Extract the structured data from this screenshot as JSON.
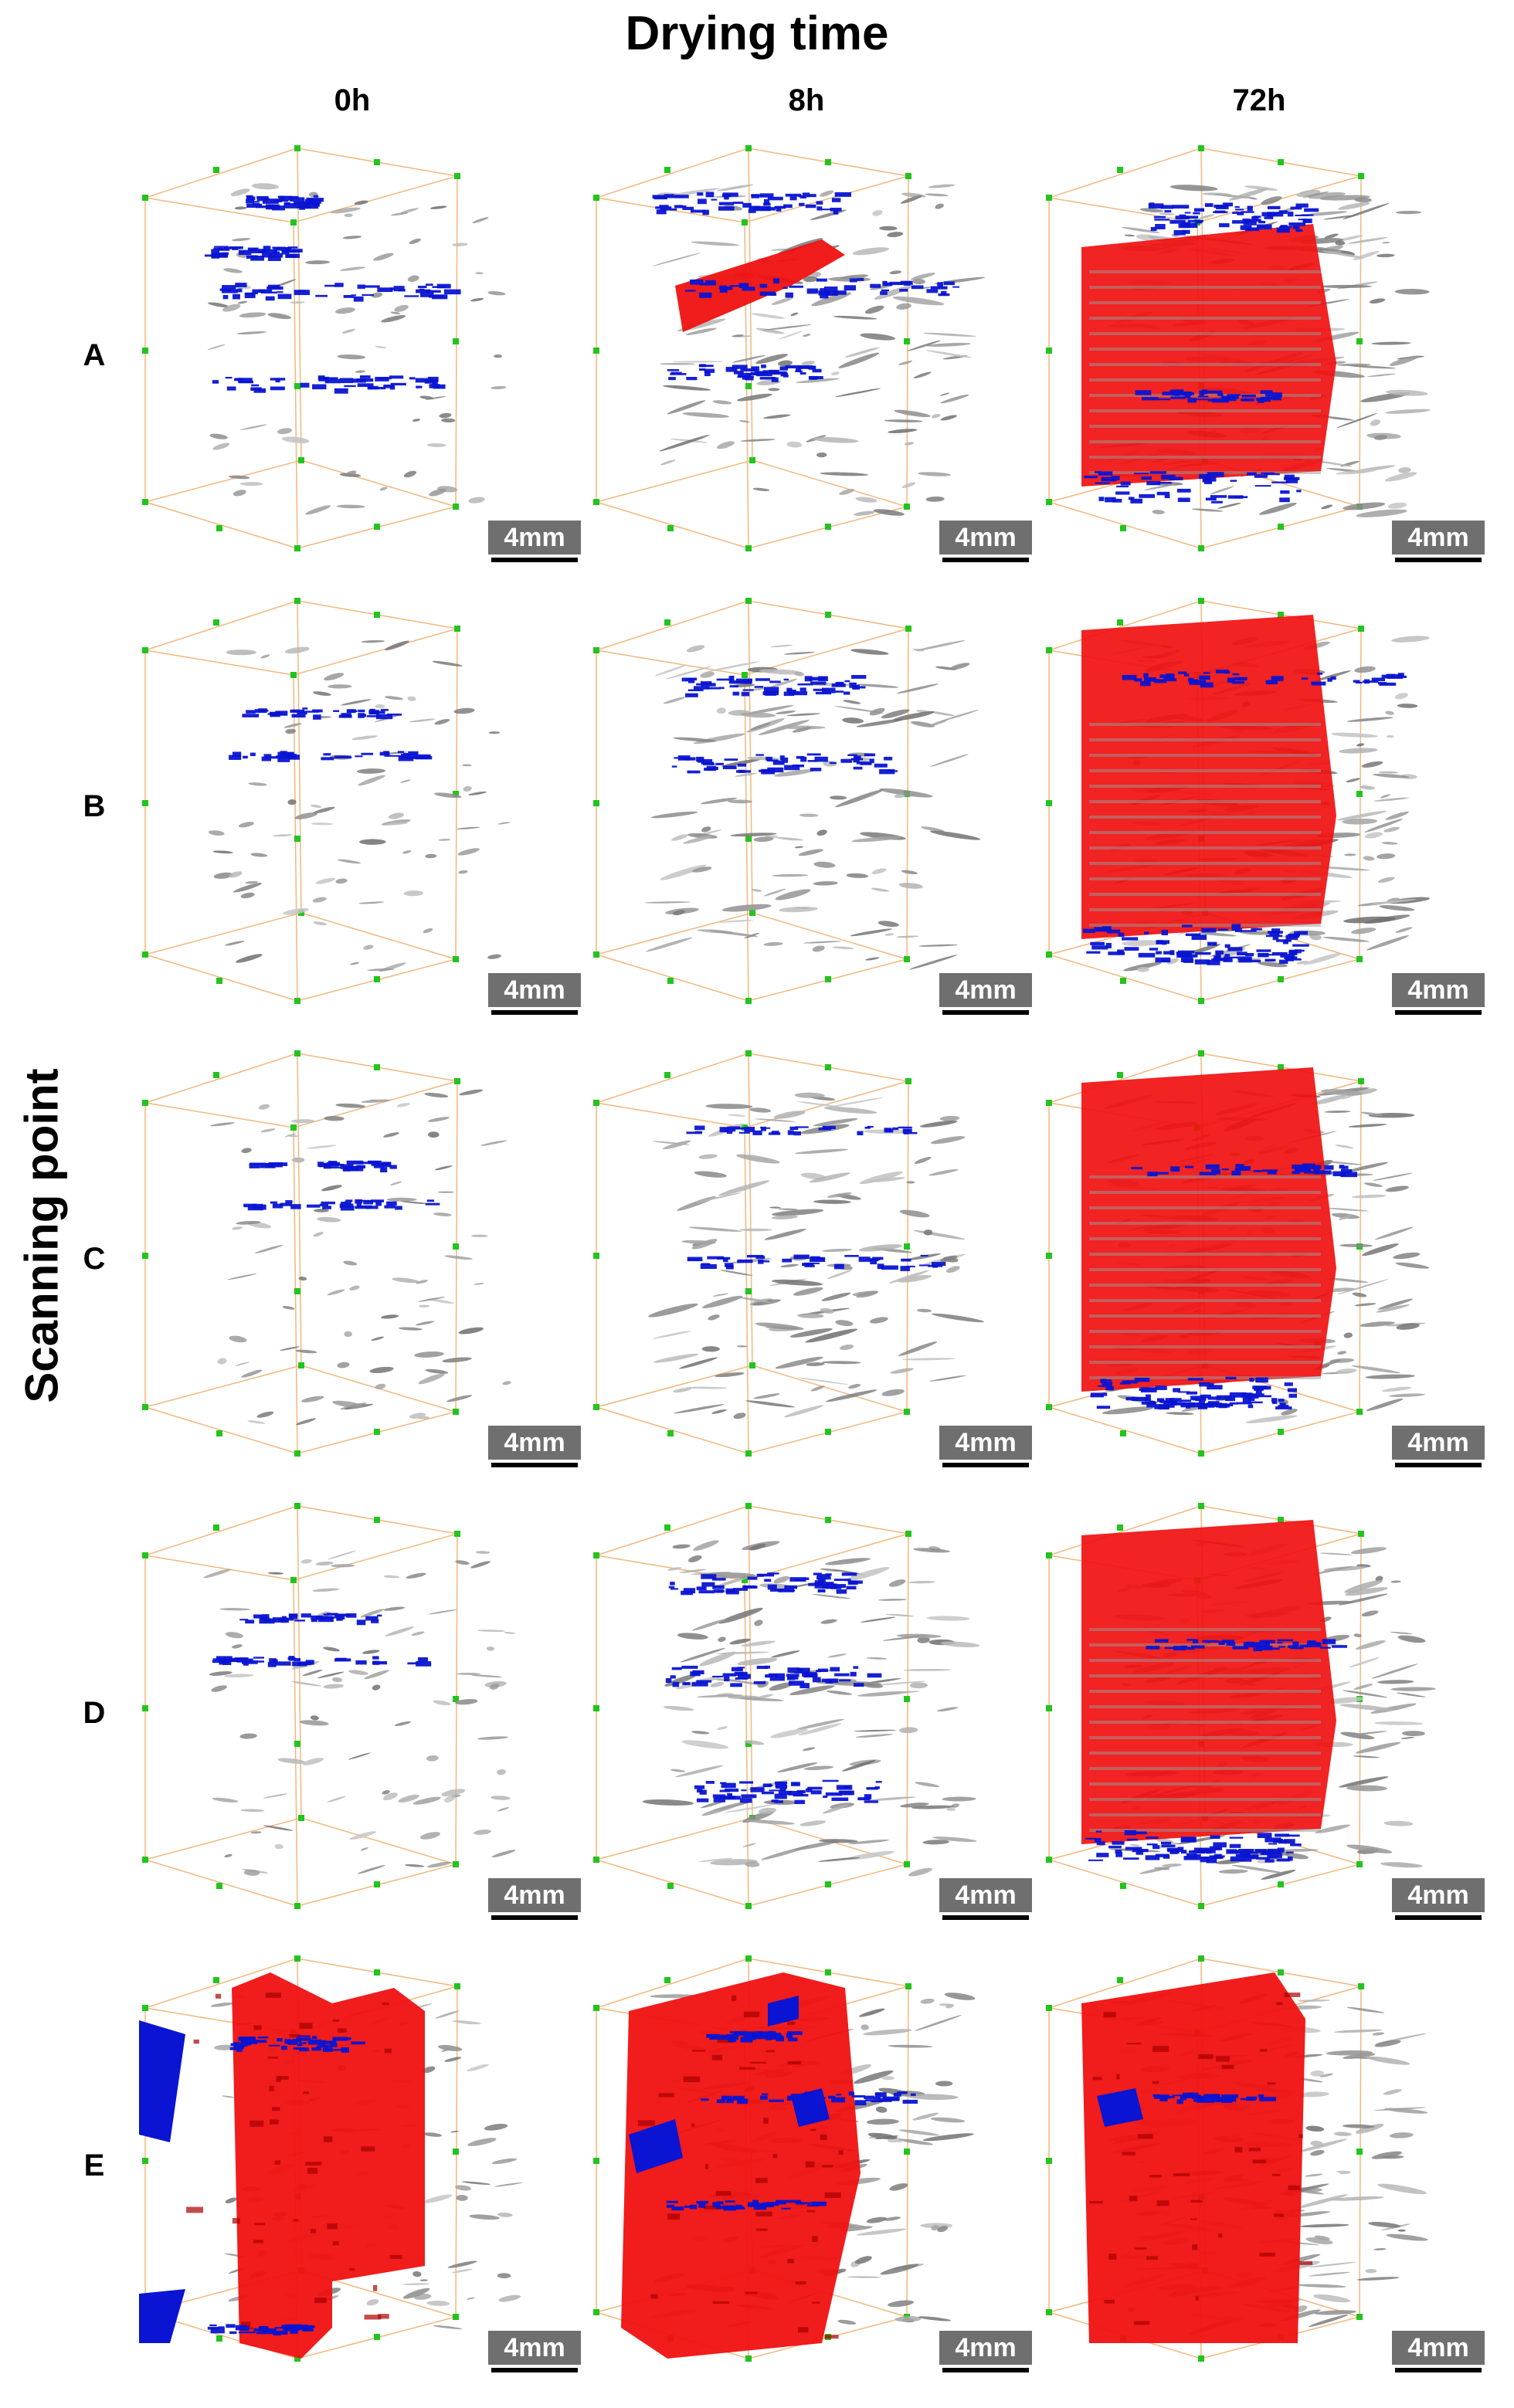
{
  "figure": {
    "title": "Drying time",
    "y_axis_title": "Scanning point",
    "columns": [
      "0h",
      "8h",
      "72h"
    ],
    "rows": [
      "A",
      "B",
      "C",
      "D",
      "E"
    ],
    "scale_bar_label": "4mm",
    "colors": {
      "box_edges": "#f2b77c",
      "corner_markers": "#22c41e",
      "background_pores": "#7a7a7a",
      "blue_cracks": "#0a14d2",
      "red_cracks": "#f01010"
    },
    "panels": [
      {
        "row": "A",
        "col": "0h"
      },
      {
        "row": "A",
        "col": "8h"
      },
      {
        "row": "A",
        "col": "72h"
      },
      {
        "row": "B",
        "col": "0h"
      },
      {
        "row": "B",
        "col": "8h"
      },
      {
        "row": "B",
        "col": "72h"
      },
      {
        "row": "C",
        "col": "0h"
      },
      {
        "row": "C",
        "col": "8h"
      },
      {
        "row": "C",
        "col": "72h"
      },
      {
        "row": "D",
        "col": "0h"
      },
      {
        "row": "D",
        "col": "8h"
      },
      {
        "row": "D",
        "col": "72h"
      },
      {
        "row": "E",
        "col": "0h"
      },
      {
        "row": "E",
        "col": "8h"
      },
      {
        "row": "E",
        "col": "72h"
      }
    ]
  }
}
